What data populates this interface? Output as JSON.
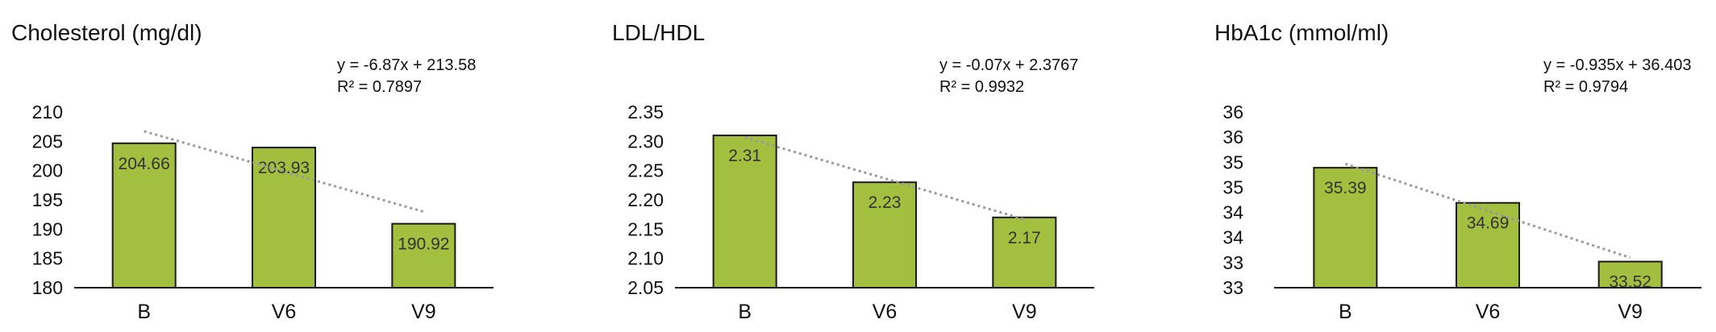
{
  "colors": {
    "bar_fill": "#a3bf3f",
    "bar_stroke": "#1a1a1a",
    "axis": "#111111",
    "trendline": "#9a9a9a"
  },
  "chart_data": [
    {
      "type": "bar",
      "title": "Cholesterol (mg/dl)",
      "categories": [
        "B",
        "V6",
        "V9"
      ],
      "values": [
        204.66,
        203.93,
        190.92
      ],
      "value_labels": [
        "204.66",
        "203.93",
        "190.92"
      ],
      "yticks": [
        "210",
        "205",
        "200",
        "195",
        "190",
        "185",
        "180"
      ],
      "ylim": [
        180,
        210
      ],
      "trendline": {
        "type": "linear",
        "slope": -6.87,
        "intercept": 213.58,
        "style": "dotted"
      },
      "equation": "y = -6.87x + 213.58",
      "r_squared": "R² = 0.7897",
      "grid": false,
      "xlabel": "",
      "ylabel": ""
    },
    {
      "type": "bar",
      "title": "LDL/HDL",
      "categories": [
        "B",
        "V6",
        "V9"
      ],
      "values": [
        2.31,
        2.23,
        2.17
      ],
      "value_labels": [
        "2.31",
        "2.23",
        "2.17"
      ],
      "yticks": [
        "2.35",
        "2.30",
        "2.25",
        "2.20",
        "2.15",
        "2.10",
        "2.05"
      ],
      "ylim": [
        2.05,
        2.35
      ],
      "trendline": {
        "type": "linear",
        "slope": -0.07,
        "intercept": 2.3767,
        "style": "dotted"
      },
      "equation": "y = -0.07x + 2.3767",
      "r_squared": "R² = 0.9932",
      "grid": false,
      "xlabel": "",
      "ylabel": ""
    },
    {
      "type": "bar",
      "title": "HbA1c (mmol/ml)",
      "categories": [
        "B",
        "V6",
        "V9"
      ],
      "values": [
        35.39,
        34.69,
        33.52
      ],
      "value_labels": [
        "35.39",
        "34.69",
        "33.52"
      ],
      "yticks": [
        "36",
        "36",
        "35",
        "35",
        "34",
        "34",
        "33",
        "33"
      ],
      "ylim": [
        33,
        36.5
      ],
      "trendline": {
        "type": "linear",
        "slope": -0.935,
        "intercept": 36.403,
        "style": "dotted"
      },
      "equation": "y = -0.935x + 36.403",
      "r_squared": "R² = 0.9794",
      "grid": false,
      "xlabel": "",
      "ylabel": ""
    }
  ]
}
